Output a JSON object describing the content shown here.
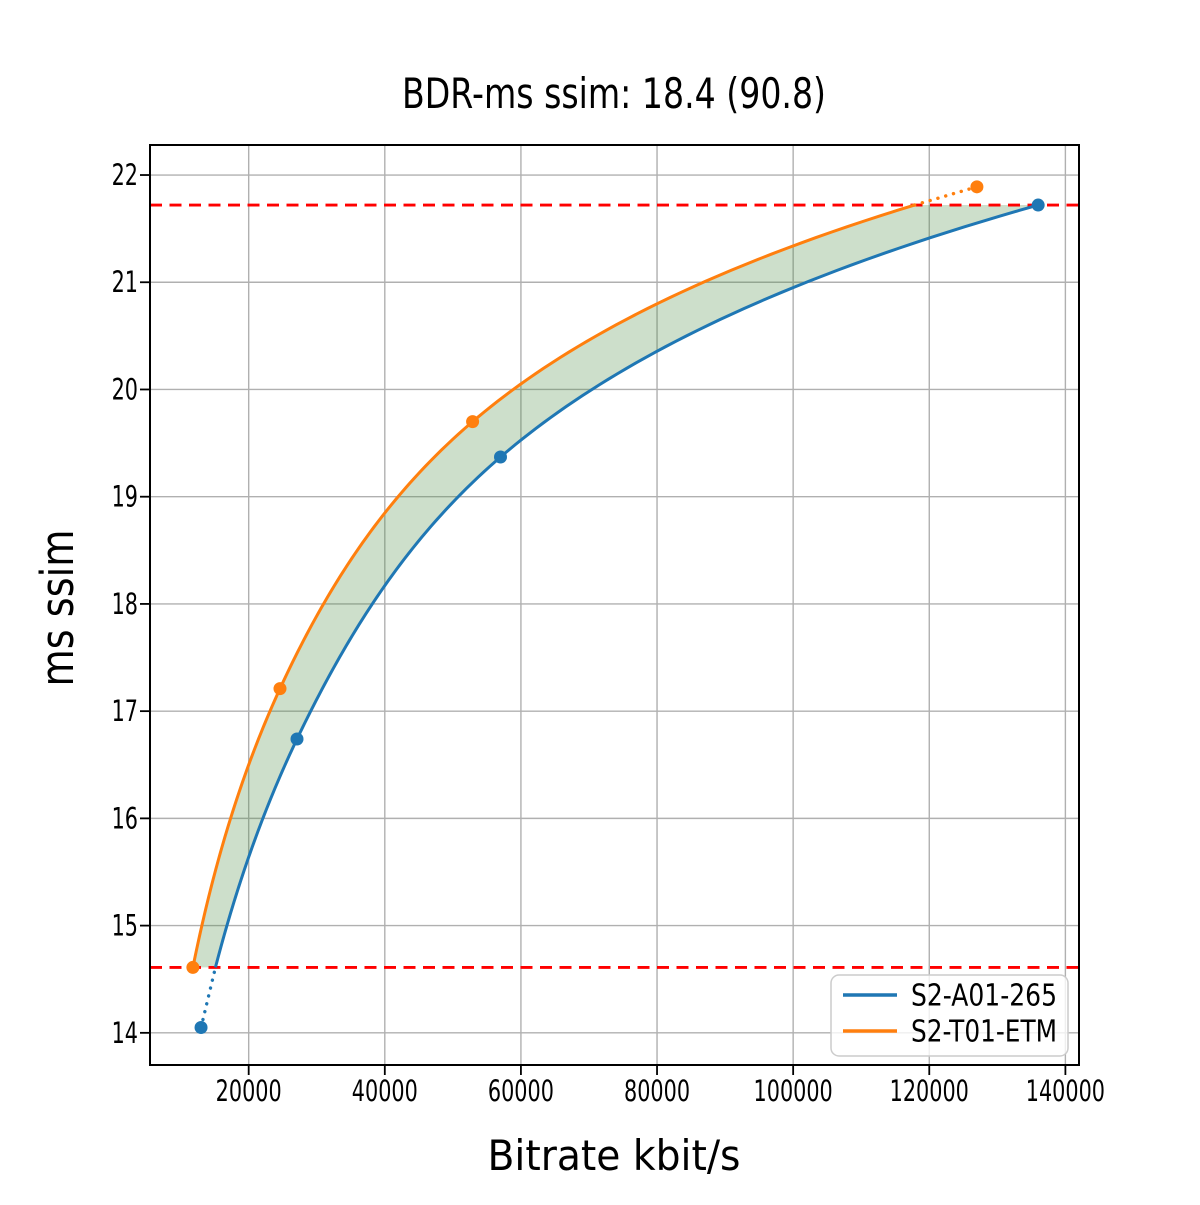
{
  "chart_data": {
    "type": "line",
    "title": "BDR-ms ssim: 18.4 (90.8)",
    "xlabel": "Bitrate kbit/s",
    "ylabel": "ms ssim",
    "xlim": [
      5500,
      142000
    ],
    "ylim": [
      13.7,
      22.28
    ],
    "x_ticks": [
      20000,
      40000,
      60000,
      80000,
      100000,
      120000,
      140000
    ],
    "y_ticks": [
      14,
      15,
      16,
      17,
      18,
      19,
      20,
      21,
      22
    ],
    "grid": true,
    "grid_color": "#b0b0b0",
    "background": "#ffffff",
    "interpolation": "pchip-log-x",
    "series": [
      {
        "name": "S2-A01-265",
        "color": "#1f77b4",
        "points": [
          [
            13000,
            14.05
          ],
          [
            27100,
            16.74
          ],
          [
            57000,
            19.37
          ],
          [
            136000,
            21.72
          ]
        ]
      },
      {
        "name": "S2-T01-ETM",
        "color": "#ff7f0e",
        "points": [
          [
            11800,
            14.61
          ],
          [
            24600,
            17.21
          ],
          [
            52900,
            19.7
          ],
          [
            127000,
            21.89
          ]
        ]
      }
    ],
    "bd_overlap": {
      "y_low": 14.61,
      "y_high": 21.72,
      "bound_line_color": "#ff0000",
      "bound_line_style": "dashed",
      "fill_color": "#4c8c46",
      "fill_opacity": 0.28
    },
    "legend": {
      "position": "lower right",
      "entries": [
        "S2-A01-265",
        "S2-T01-ETM"
      ]
    }
  }
}
